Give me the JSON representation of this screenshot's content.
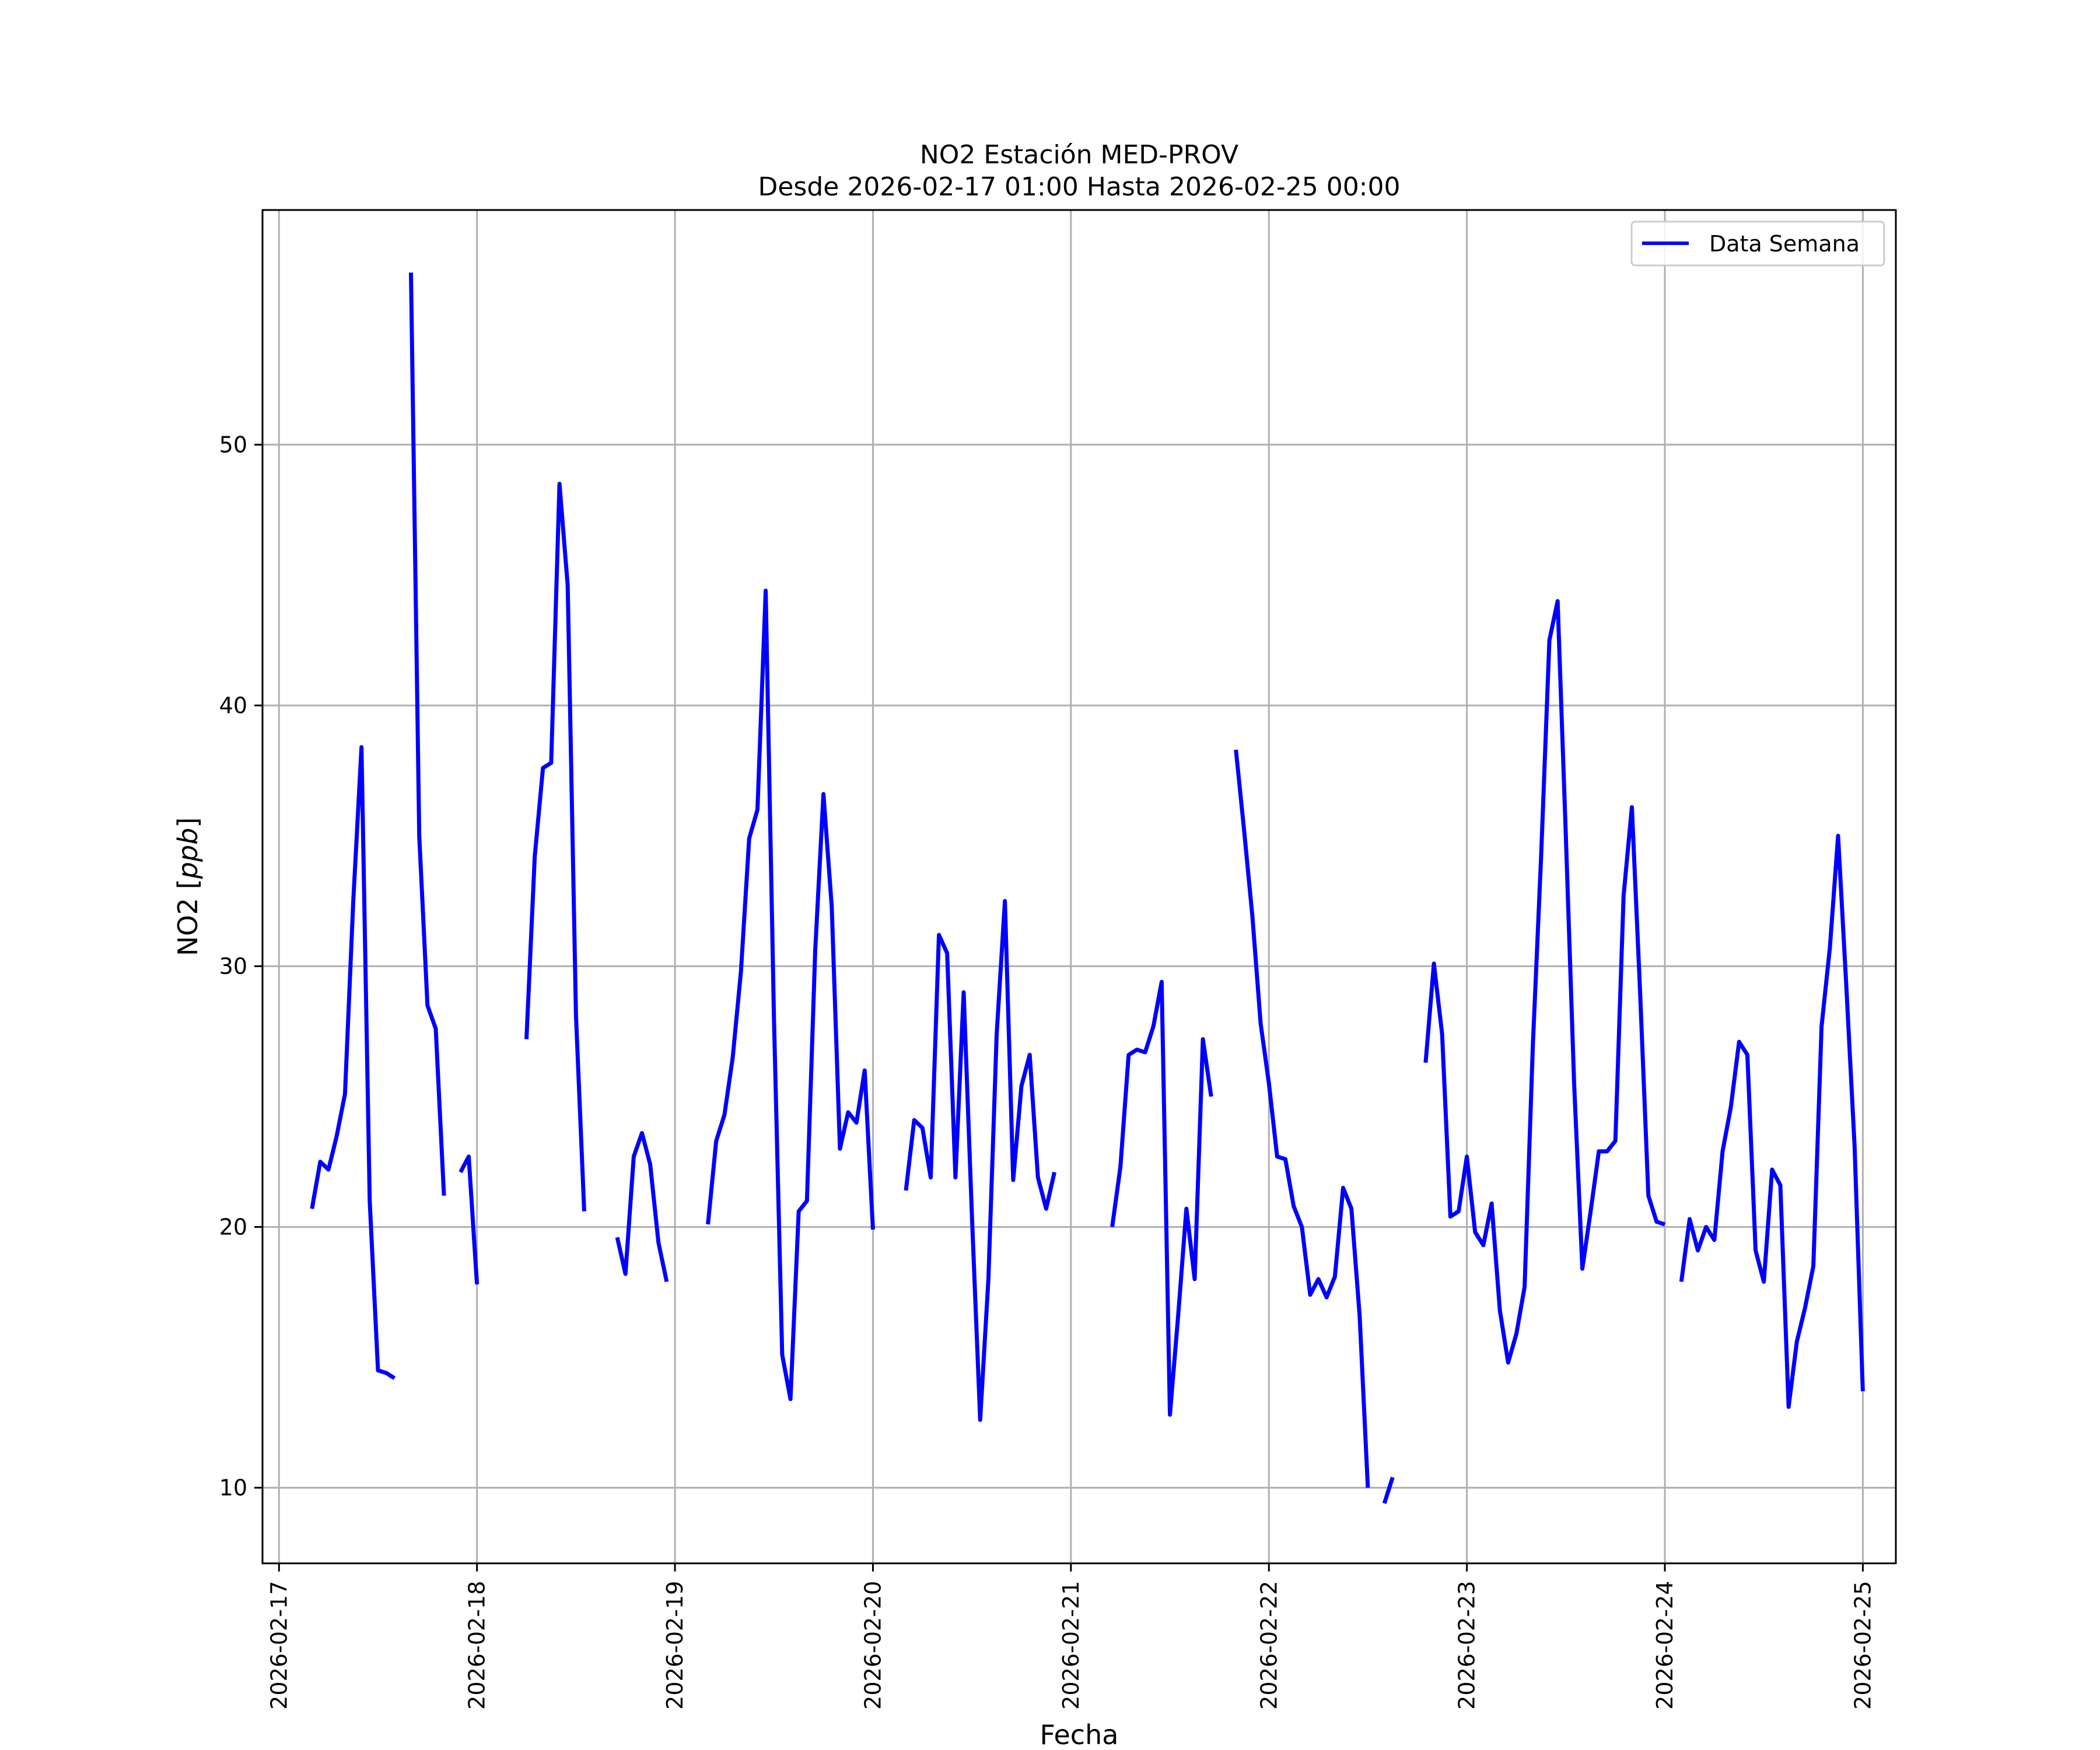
{
  "chart_data": {
    "type": "line",
    "title": "NO2 Estación MED-PROV",
    "subtitle": "Desde 2026-02-17 01:00 Hasta 2026-02-25 00:00",
    "xlabel": "Fecha",
    "ylabel": "NO2 [ppb]",
    "ylabel_prefix": "NO2 [",
    "ylabel_unit": "ppb",
    "ylabel_suffix": "]",
    "xlim": [
      "2026-02-16T22:00",
      "2026-02-25T04:00"
    ],
    "ylim": [
      7.1,
      59.0
    ],
    "yticks": [
      10,
      20,
      30,
      40,
      50
    ],
    "xticks": [
      "2026-02-17",
      "2026-02-18",
      "2026-02-19",
      "2026-02-20",
      "2026-02-21",
      "2026-02-22",
      "2026-02-23",
      "2026-02-24",
      "2026-02-25"
    ],
    "grid": true,
    "legend_position": "top-right",
    "line_color": "#0000ff",
    "series": [
      {
        "name": "Data Semana",
        "color": "#0000ff",
        "segments": [
          [
            [
              "2026-02-17T04:00",
              20.7
            ],
            [
              "2026-02-17T05:00",
              22.5
            ],
            [
              "2026-02-17T06:00",
              22.2
            ],
            [
              "2026-02-17T07:00",
              23.5
            ],
            [
              "2026-02-17T08:00",
              25.1
            ],
            [
              "2026-02-17T09:00",
              32.5
            ],
            [
              "2026-02-17T10:00",
              38.4
            ],
            [
              "2026-02-17T11:00",
              21.0
            ],
            [
              "2026-02-17T12:00",
              14.5
            ],
            [
              "2026-02-17T13:00",
              14.4
            ],
            [
              "2026-02-17T14:00",
              14.2
            ]
          ],
          [
            [
              "2026-02-17T16:00",
              56.6
            ],
            [
              "2026-02-17T17:00",
              35.0
            ],
            [
              "2026-02-17T18:00",
              28.5
            ],
            [
              "2026-02-17T19:00",
              27.6
            ],
            [
              "2026-02-17T20:00",
              21.2
            ]
          ],
          [
            [
              "2026-02-17T22:00",
              22.1
            ],
            [
              "2026-02-17T23:00",
              22.7
            ],
            [
              "2026-02-18T00:00",
              17.8
            ]
          ],
          [
            [
              "2026-02-18T06:00",
              27.2
            ],
            [
              "2026-02-18T07:00",
              34.2
            ],
            [
              "2026-02-18T08:00",
              37.6
            ],
            [
              "2026-02-18T09:00",
              37.8
            ],
            [
              "2026-02-18T10:00",
              48.5
            ],
            [
              "2026-02-18T11:00",
              44.6
            ],
            [
              "2026-02-18T12:00",
              28.1
            ],
            [
              "2026-02-18T13:00",
              20.6
            ]
          ],
          [
            [
              "2026-02-18T17:00",
              19.6
            ],
            [
              "2026-02-18T18:00",
              18.2
            ],
            [
              "2026-02-18T19:00",
              22.7
            ],
            [
              "2026-02-18T20:00",
              23.6
            ],
            [
              "2026-02-18T21:00",
              22.4
            ],
            [
              "2026-02-18T22:00",
              19.4
            ],
            [
              "2026-02-18T23:00",
              17.9
            ]
          ],
          [
            [
              "2026-02-19T04:00",
              20.1
            ],
            [
              "2026-02-19T05:00",
              23.3
            ],
            [
              "2026-02-19T06:00",
              24.3
            ],
            [
              "2026-02-19T07:00",
              26.5
            ],
            [
              "2026-02-19T08:00",
              29.8
            ],
            [
              "2026-02-19T09:00",
              34.9
            ],
            [
              "2026-02-19T10:00",
              36.0
            ],
            [
              "2026-02-19T11:00",
              44.4
            ],
            [
              "2026-02-19T12:00",
              28.0
            ],
            [
              "2026-02-19T13:00",
              15.1
            ],
            [
              "2026-02-19T14:00",
              13.4
            ],
            [
              "2026-02-19T15:00",
              20.6
            ],
            [
              "2026-02-19T16:00",
              21.0
            ],
            [
              "2026-02-19T17:00",
              30.6
            ],
            [
              "2026-02-19T18:00",
              36.6
            ],
            [
              "2026-02-19T19:00",
              32.3
            ],
            [
              "2026-02-19T20:00",
              23.0
            ],
            [
              "2026-02-19T21:00",
              24.4
            ],
            [
              "2026-02-19T22:00",
              24.0
            ],
            [
              "2026-02-19T23:00",
              26.0
            ],
            [
              "2026-02-20T00:00",
              19.9
            ]
          ],
          [
            [
              "2026-02-20T04:00",
              21.4
            ],
            [
              "2026-02-20T05:00",
              24.1
            ],
            [
              "2026-02-20T06:00",
              23.8
            ],
            [
              "2026-02-20T07:00",
              21.9
            ],
            [
              "2026-02-20T08:00",
              31.2
            ],
            [
              "2026-02-20T09:00",
              30.5
            ],
            [
              "2026-02-20T10:00",
              21.9
            ],
            [
              "2026-02-20T11:00",
              29.0
            ],
            [
              "2026-02-20T12:00",
              20.4
            ],
            [
              "2026-02-20T13:00",
              12.6
            ],
            [
              "2026-02-20T14:00",
              18.0
            ],
            [
              "2026-02-20T15:00",
              27.4
            ],
            [
              "2026-02-20T16:00",
              32.5
            ],
            [
              "2026-02-20T17:00",
              21.8
            ],
            [
              "2026-02-20T18:00",
              25.4
            ],
            [
              "2026-02-20T19:00",
              26.6
            ],
            [
              "2026-02-20T20:00",
              21.9
            ],
            [
              "2026-02-20T21:00",
              20.7
            ],
            [
              "2026-02-20T22:00",
              22.1
            ]
          ],
          [
            [
              "2026-02-21T05:00",
              20.0
            ],
            [
              "2026-02-21T06:00",
              22.3
            ],
            [
              "2026-02-21T07:00",
              26.6
            ],
            [
              "2026-02-21T08:00",
              26.8
            ],
            [
              "2026-02-21T09:00",
              26.7
            ],
            [
              "2026-02-21T10:00",
              27.7
            ],
            [
              "2026-02-21T11:00",
              29.4
            ],
            [
              "2026-02-21T12:00",
              12.8
            ],
            [
              "2026-02-21T13:00",
              16.6
            ],
            [
              "2026-02-21T14:00",
              20.7
            ],
            [
              "2026-02-21T15:00",
              18.0
            ],
            [
              "2026-02-21T16:00",
              27.2
            ],
            [
              "2026-02-21T17:00",
              25.0
            ]
          ],
          [
            [
              "2026-02-21T20:00",
              38.3
            ],
            [
              "2026-02-21T21:00",
              35.2
            ],
            [
              "2026-02-21T22:00",
              31.9
            ],
            [
              "2026-02-21T23:00",
              27.8
            ],
            [
              "2026-02-22T00:00",
              25.5
            ],
            [
              "2026-02-22T01:00",
              22.7
            ],
            [
              "2026-02-22T02:00",
              22.6
            ],
            [
              "2026-02-22T03:00",
              20.8
            ],
            [
              "2026-02-22T04:00",
              20.0
            ],
            [
              "2026-02-22T05:00",
              17.4
            ],
            [
              "2026-02-22T06:00",
              18.0
            ],
            [
              "2026-02-22T07:00",
              17.3
            ],
            [
              "2026-02-22T08:00",
              18.1
            ],
            [
              "2026-02-22T09:00",
              21.5
            ],
            [
              "2026-02-22T10:00",
              20.7
            ],
            [
              "2026-02-22T11:00",
              16.6
            ],
            [
              "2026-02-22T12:00",
              10.0
            ]
          ],
          [
            [
              "2026-02-22T14:00",
              9.4
            ],
            [
              "2026-02-22T15:00",
              10.4
            ]
          ],
          [
            [
              "2026-02-22T19:00",
              26.3
            ],
            [
              "2026-02-22T20:00",
              30.1
            ],
            [
              "2026-02-22T21:00",
              27.4
            ],
            [
              "2026-02-22T22:00",
              20.4
            ],
            [
              "2026-02-22T23:00",
              20.6
            ],
            [
              "2026-02-23T00:00",
              22.7
            ],
            [
              "2026-02-23T01:00",
              19.8
            ],
            [
              "2026-02-23T02:00",
              19.3
            ],
            [
              "2026-02-23T03:00",
              20.9
            ],
            [
              "2026-02-23T04:00",
              16.8
            ],
            [
              "2026-02-23T05:00",
              14.8
            ],
            [
              "2026-02-23T06:00",
              15.9
            ],
            [
              "2026-02-23T07:00",
              17.7
            ],
            [
              "2026-02-23T08:00",
              27.0
            ],
            [
              "2026-02-23T09:00",
              34.2
            ],
            [
              "2026-02-23T10:00",
              42.5
            ],
            [
              "2026-02-23T11:00",
              44.0
            ],
            [
              "2026-02-23T12:00",
              35.0
            ],
            [
              "2026-02-23T13:00",
              25.5
            ],
            [
              "2026-02-23T14:00",
              18.4
            ],
            [
              "2026-02-23T15:00",
              20.6
            ],
            [
              "2026-02-23T16:00",
              22.9
            ],
            [
              "2026-02-23T17:00",
              22.9
            ],
            [
              "2026-02-23T18:00",
              23.3
            ],
            [
              "2026-02-23T19:00",
              32.7
            ],
            [
              "2026-02-23T20:00",
              36.1
            ],
            [
              "2026-02-23T21:00",
              29.0
            ],
            [
              "2026-02-23T22:00",
              21.2
            ],
            [
              "2026-02-23T23:00",
              20.2
            ],
            [
              "2026-02-24T00:00",
              20.1
            ]
          ],
          [
            [
              "2026-02-24T02:00",
              17.9
            ],
            [
              "2026-02-24T03:00",
              20.3
            ],
            [
              "2026-02-24T04:00",
              19.1
            ],
            [
              "2026-02-24T05:00",
              20.0
            ],
            [
              "2026-02-24T06:00",
              19.5
            ],
            [
              "2026-02-24T07:00",
              22.9
            ],
            [
              "2026-02-24T08:00",
              24.6
            ],
            [
              "2026-02-24T09:00",
              27.1
            ],
            [
              "2026-02-24T10:00",
              26.6
            ],
            [
              "2026-02-24T11:00",
              19.1
            ],
            [
              "2026-02-24T12:00",
              17.9
            ],
            [
              "2026-02-24T13:00",
              22.2
            ],
            [
              "2026-02-24T14:00",
              21.6
            ],
            [
              "2026-02-24T15:00",
              13.1
            ],
            [
              "2026-02-24T16:00",
              15.6
            ],
            [
              "2026-02-24T17:00",
              16.9
            ],
            [
              "2026-02-24T18:00",
              18.5
            ],
            [
              "2026-02-24T19:00",
              27.7
            ],
            [
              "2026-02-24T20:00",
              30.7
            ],
            [
              "2026-02-24T21:00",
              35.0
            ],
            [
              "2026-02-24T22:00",
              29.2
            ],
            [
              "2026-02-24T23:00",
              23.1
            ],
            [
              "2026-02-25T00:00",
              13.7
            ]
          ]
        ]
      }
    ]
  }
}
